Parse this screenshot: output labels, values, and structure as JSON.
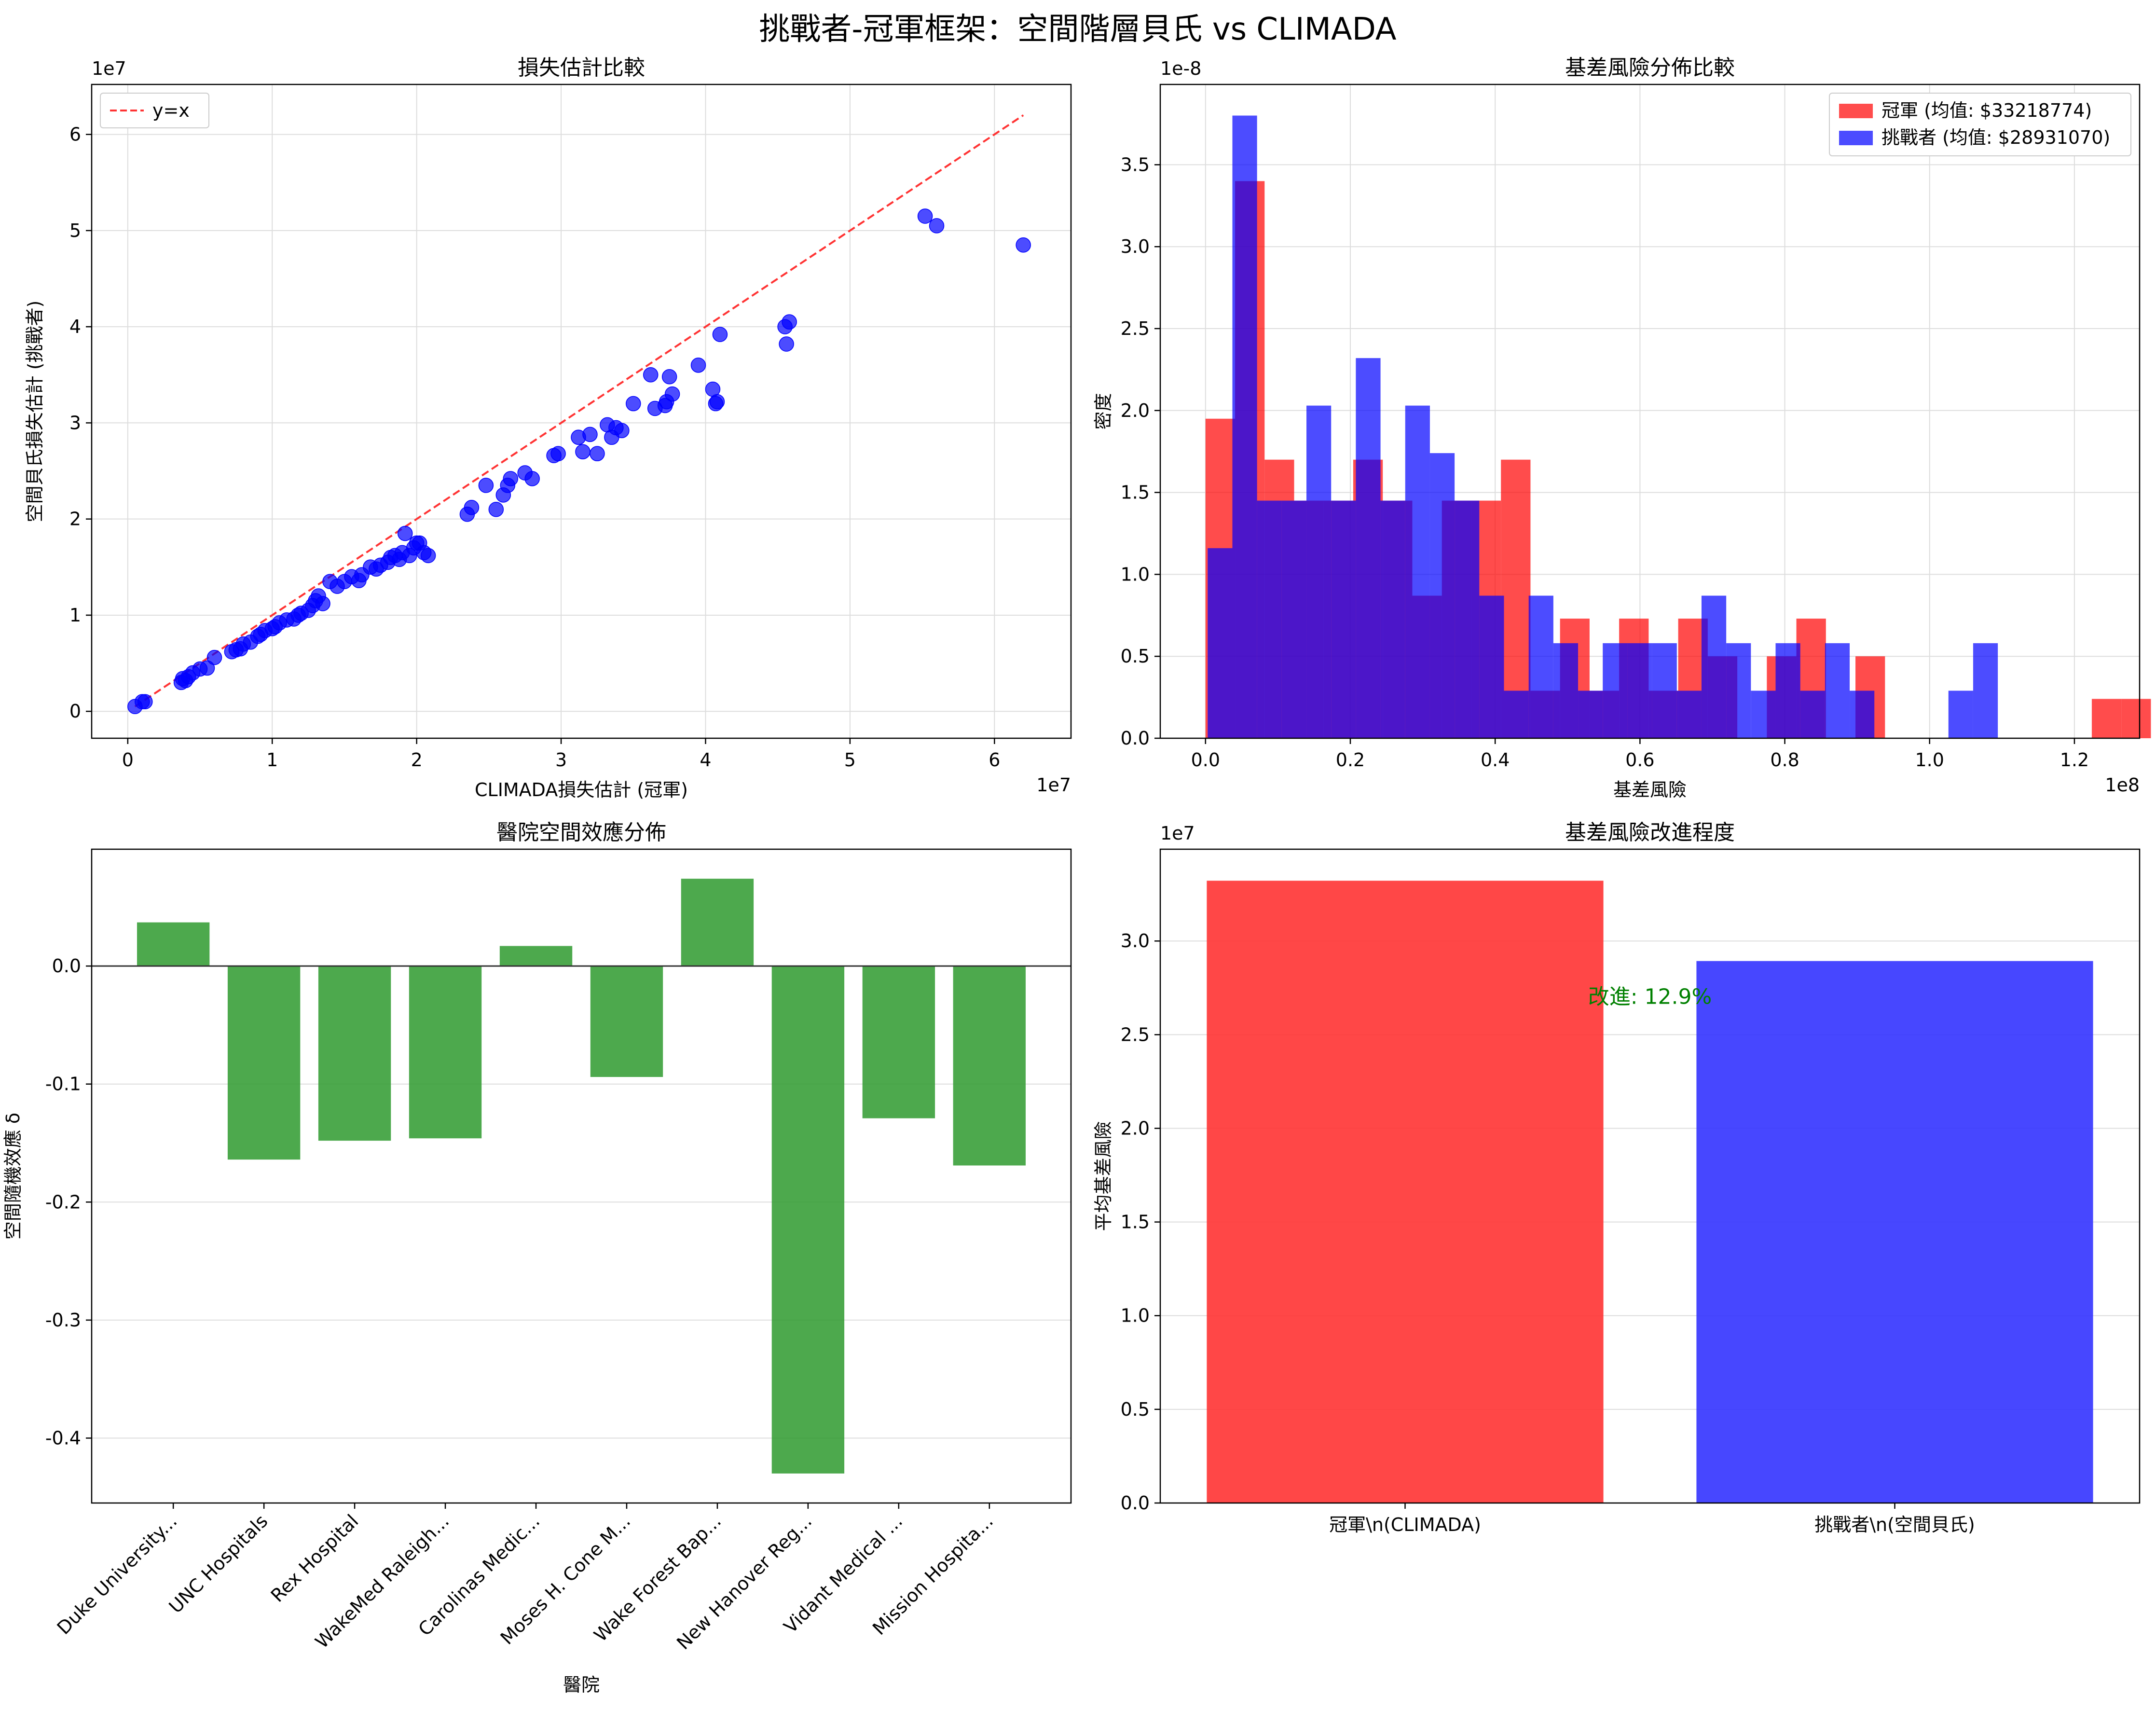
{
  "figure_title": "挑戰者-冠軍框架：空間階層貝氏 vs CLIMADA",
  "chart_data": [
    {
      "id": "scatter",
      "type": "scatter",
      "title": "損失估計比較",
      "xlabel": "CLIMADA損失估計 (冠軍)",
      "ylabel": "空間貝氏損失估計 (挑戰者)",
      "x_offset_label": "1e7",
      "y_offset_label": "1e7",
      "xlim": [
        -0.25,
        6.53
      ],
      "ylim": [
        -0.28,
        6.52
      ],
      "xticks": [
        0,
        1,
        2,
        3,
        4,
        5,
        6
      ],
      "yticks": [
        0,
        1,
        2,
        3,
        4,
        5,
        6
      ],
      "grid": true,
      "point_color": "#0000ff",
      "reference_line": {
        "name": "y=x",
        "x": [
          0.05,
          6.2
        ],
        "y": [
          0.05,
          6.2
        ],
        "color": "#ff3333"
      },
      "legend": {
        "position": "upper left",
        "entries": [
          "y=x"
        ]
      },
      "series": [
        {
          "name": "",
          "x": [
            0.05,
            0.1,
            0.12,
            0.37,
            0.38,
            0.4,
            0.42,
            0.45,
            0.5,
            0.55,
            0.6,
            0.72,
            0.75,
            0.78,
            0.8,
            0.85,
            0.9,
            0.92,
            0.95,
            1.0,
            1.02,
            1.05,
            1.1,
            1.15,
            1.18,
            1.2,
            1.25,
            1.28,
            1.3,
            1.32,
            1.35,
            1.4,
            1.45,
            1.5,
            1.55,
            1.6,
            1.62,
            1.68,
            1.72,
            1.75,
            1.8,
            1.82,
            1.85,
            1.88,
            1.9,
            1.92,
            1.95,
            1.98,
            2.0,
            2.02,
            2.05,
            2.08,
            2.35,
            2.38,
            2.48,
            2.55,
            2.6,
            2.63,
            2.65,
            2.75,
            2.8,
            2.95,
            2.98,
            3.12,
            3.15,
            3.2,
            3.25,
            3.32,
            3.35,
            3.38,
            3.42,
            3.5,
            3.62,
            3.65,
            3.72,
            3.73,
            3.75,
            3.77,
            3.95,
            4.05,
            4.07,
            4.08,
            4.1,
            4.55,
            4.56,
            4.58,
            5.52,
            5.6,
            6.2
          ],
          "y": [
            0.05,
            0.1,
            0.1,
            0.3,
            0.34,
            0.32,
            0.36,
            0.4,
            0.44,
            0.45,
            0.56,
            0.62,
            0.64,
            0.65,
            0.7,
            0.72,
            0.78,
            0.8,
            0.84,
            0.86,
            0.88,
            0.92,
            0.95,
            0.96,
            1.0,
            1.02,
            1.05,
            1.1,
            1.15,
            1.2,
            1.12,
            1.35,
            1.3,
            1.35,
            1.4,
            1.36,
            1.42,
            1.5,
            1.48,
            1.52,
            1.55,
            1.6,
            1.62,
            1.58,
            1.65,
            1.85,
            1.62,
            1.7,
            1.75,
            1.75,
            1.65,
            1.62,
            2.05,
            2.12,
            2.35,
            2.1,
            2.25,
            2.35,
            2.42,
            2.48,
            2.42,
            2.66,
            2.68,
            2.85,
            2.7,
            2.88,
            2.68,
            2.98,
            2.85,
            2.95,
            2.92,
            3.2,
            3.5,
            3.15,
            3.18,
            3.22,
            3.48,
            3.3,
            3.6,
            3.35,
            3.2,
            3.22,
            3.92,
            4.0,
            3.82,
            4.05,
            5.15,
            5.05,
            4.85
          ]
        }
      ]
    },
    {
      "id": "histogram",
      "type": "histogram",
      "title": "基差風險分佈比較",
      "xlabel": "基差風險",
      "ylabel": "密度",
      "x_offset_label": "1e8",
      "y_offset_label": "1e-8",
      "xlim": [
        -0.0625,
        1.29
      ],
      "ylim": [
        0,
        3.99
      ],
      "xticks": [
        0.0,
        0.2,
        0.4,
        0.6,
        0.8,
        1.0,
        1.2
      ],
      "yticks": [
        0.0,
        0.5,
        1.0,
        1.5,
        2.0,
        2.5,
        3.0,
        3.5
      ],
      "grid": true,
      "legend": {
        "position": "upper right"
      },
      "series": [
        {
          "name": "冠軍 (均值: $33218774)",
          "color": "#ff0000",
          "opacity": 0.7,
          "bin_start": 0.0,
          "bin_width": 0.0408,
          "values": [
            1.95,
            3.4,
            1.7,
            1.45,
            1.45,
            1.7,
            1.45,
            0.87,
            1.45,
            1.45,
            1.7,
            0.29,
            0.73,
            0.29,
            0.73,
            0.29,
            0.73,
            0.5,
            0.0,
            0.5,
            0.73,
            0.0,
            0.5,
            0.0,
            0.0,
            0.0,
            0.0,
            0.0,
            0.0,
            0.0,
            0.24,
            0.24
          ]
        },
        {
          "name": "挑戰者 (均值: $28931070)",
          "color": "#0000ff",
          "opacity": 0.7,
          "bin_start": 0.003,
          "bin_width": 0.0341,
          "values": [
            1.16,
            3.8,
            1.45,
            1.45,
            2.03,
            1.45,
            2.32,
            1.45,
            2.03,
            1.74,
            1.45,
            0.87,
            0.29,
            0.87,
            0.58,
            0.29,
            0.58,
            0.58,
            0.58,
            0.29,
            0.87,
            0.58,
            0.29,
            0.58,
            0.29,
            0.58,
            0.29,
            0.0,
            0.0,
            0.0,
            0.29,
            0.58
          ]
        }
      ]
    },
    {
      "id": "spatial",
      "type": "bar",
      "title": "醫院空間效應分佈",
      "xlabel": "醫院",
      "ylabel": "空間隨機效應 δ",
      "ylim": [
        -0.455,
        0.099
      ],
      "yticks": [
        0.0,
        -0.1,
        -0.2,
        -0.3,
        -0.4
      ],
      "ytick_labels": [
        "0.0",
        "-0.1",
        "-0.2",
        "-0.3",
        "-0.4"
      ],
      "grid": true,
      "bar_color": "#2e9a2e",
      "categories": [
        "Duke University...",
        "UNC Hospitals",
        "Rex Hospital",
        "WakeMed Raleigh...",
        "Carolinas Medic...",
        "Moses H. Cone M...",
        "Wake Forest Bap...",
        "New Hanover Reg...",
        "Vidant Medical ...",
        "Mission Hospita..."
      ],
      "values": [
        0.037,
        -0.164,
        -0.148,
        -0.146,
        0.017,
        -0.094,
        0.074,
        -0.43,
        -0.129,
        -0.169
      ]
    },
    {
      "id": "improvement",
      "type": "bar",
      "title": "基差風險改進程度",
      "ylabel": "平均基差風險",
      "y_offset_label": "1e7",
      "ylim": [
        0,
        3.49
      ],
      "yticks": [
        0.0,
        0.5,
        1.0,
        1.5,
        2.0,
        2.5,
        3.0
      ],
      "grid": true,
      "categories": [
        "冠軍\\n(CLIMADA)",
        "挑戰者\\n(空間貝氏)"
      ],
      "values": [
        3.3218774,
        2.893107
      ],
      "colors": [
        "#ff3333",
        "#3333ff"
      ],
      "annotation": {
        "text": "改進: 12.9%",
        "color": "#008000",
        "x": 0.5,
        "y": 2.7
      }
    }
  ]
}
